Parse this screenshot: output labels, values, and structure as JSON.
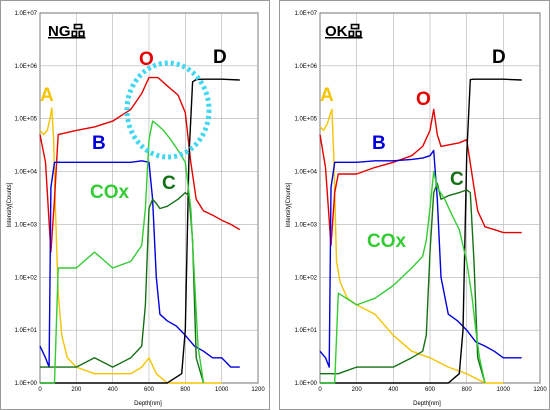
{
  "chart_data": [
    {
      "type": "line",
      "title": "NG品",
      "xlabel": "Depth[nm]",
      "ylabel": "Intensity[Counts]",
      "xlim": [
        0,
        1200
      ],
      "ylim": [
        1,
        10000000
      ],
      "y_scale": "log",
      "x_ticks": [
        "0",
        "200",
        "400",
        "600",
        "800",
        "1000",
        "1200"
      ],
      "y_ticks": [
        "1.0E+00",
        "1.0E+01",
        "1.0E+02",
        "1.0E+03",
        "1.0E+04",
        "1.0E+05",
        "1.0E+06",
        "1.0E+07"
      ],
      "grid": true,
      "series": [
        {
          "name": "A",
          "color": "#f5c400",
          "x": [
            0,
            20,
            40,
            55,
            65,
            75,
            85,
            100,
            120,
            150,
            200,
            300,
            400,
            500,
            560,
            600,
            640,
            700,
            800,
            900,
            1000
          ],
          "y": [
            60000,
            50000,
            60000,
            100000,
            160000,
            40000,
            2000,
            50,
            8,
            3,
            2,
            1.5,
            1.5,
            1.5,
            2,
            3,
            1.5,
            1,
            1,
            1,
            1
          ]
        },
        {
          "name": "O",
          "color": "#e60000",
          "x": [
            0,
            30,
            60,
            80,
            100,
            200,
            300,
            400,
            500,
            560,
            600,
            650,
            700,
            760,
            800,
            830,
            860,
            900,
            950,
            1000,
            1050,
            1100
          ],
          "y": [
            50000,
            15000,
            300,
            3000,
            50000,
            60000,
            70000,
            90000,
            150000,
            300000,
            600000,
            600000,
            420000,
            280000,
            130000,
            15000,
            3000,
            1800,
            1500,
            1200,
            1000,
            800
          ]
        },
        {
          "name": "B",
          "color": "#0000dd",
          "x": [
            0,
            30,
            50,
            60,
            80,
            100,
            200,
            300,
            400,
            500,
            560,
            600,
            620,
            640,
            660,
            700,
            750,
            800,
            850,
            900,
            950,
            1000,
            1050,
            1100
          ],
          "y": [
            5,
            3,
            2,
            5000,
            15000,
            15000,
            15000,
            15000,
            15000,
            15000,
            16000,
            15000,
            3000,
            100,
            20,
            15,
            12,
            8,
            5,
            4,
            3,
            3,
            2,
            2
          ]
        },
        {
          "name": "D",
          "color": "#000000",
          "x": [
            0,
            200,
            400,
            600,
            700,
            780,
            800,
            820,
            840,
            860,
            900,
            1000,
            1100
          ],
          "y": [
            1,
            1,
            1,
            1,
            1,
            1.5,
            10,
            20000,
            500000,
            550000,
            560000,
            560000,
            540000
          ]
        },
        {
          "name": "C",
          "color": "#157015",
          "x": [
            0,
            100,
            200,
            300,
            400,
            500,
            560,
            580,
            600,
            620,
            640,
            660,
            700,
            760,
            800,
            820,
            840,
            860,
            900
          ],
          "y": [
            2,
            2,
            2,
            3,
            2,
            3,
            5,
            30,
            2000,
            3000,
            2500,
            2000,
            2200,
            3000,
            4000,
            3500,
            500,
            3,
            1
          ]
        },
        {
          "name": "COx",
          "color": "#33cc33",
          "x": [
            0,
            50,
            80,
            100,
            200,
            300,
            400,
            500,
            560,
            580,
            600,
            620,
            640,
            680,
            720,
            760,
            800,
            830,
            850,
            870,
            900
          ],
          "y": [
            1,
            1,
            1,
            150,
            150,
            300,
            150,
            200,
            400,
            2000,
            40000,
            90000,
            80000,
            60000,
            40000,
            25000,
            15000,
            2000,
            100,
            5,
            1
          ]
        }
      ],
      "annotations": [
        {
          "text": "NG品"
        },
        {
          "text": "A",
          "color": "#f5c400"
        },
        {
          "text": "O",
          "color": "#e60000"
        },
        {
          "text": "D",
          "color": "#000000"
        },
        {
          "text": "B",
          "color": "#0000dd"
        },
        {
          "text": "COx",
          "color": "#33cc33"
        },
        {
          "text": "C",
          "color": "#157015"
        }
      ]
    },
    {
      "type": "line",
      "title": "OK品",
      "xlabel": "Depth[nm]",
      "ylabel": "Intensity[Counts]",
      "xlim": [
        0,
        1200
      ],
      "ylim": [
        1,
        10000000
      ],
      "y_scale": "log",
      "x_ticks": [
        "0",
        "200",
        "400",
        "600",
        "800",
        "1000",
        "1200"
      ],
      "y_ticks": [
        "1.0E+00",
        "1.0E+01",
        "1.0E+02",
        "1.0E+03",
        "1.0E+04",
        "1.0E+05",
        "1.0E+06",
        "1.0E+07"
      ],
      "grid": true,
      "series": [
        {
          "name": "A",
          "color": "#f5c400",
          "x": [
            0,
            20,
            40,
            55,
            65,
            75,
            90,
            110,
            150,
            200,
            300,
            400,
            500,
            600,
            700,
            800,
            900,
            1000
          ],
          "y": [
            70000,
            60000,
            80000,
            120000,
            150000,
            20000,
            200,
            80,
            40,
            30,
            20,
            8,
            4,
            3,
            2,
            1.5,
            1,
            1
          ]
        },
        {
          "name": "O",
          "color": "#e60000",
          "x": [
            0,
            30,
            60,
            80,
            100,
            200,
            300,
            400,
            500,
            560,
            600,
            620,
            640,
            660,
            700,
            760,
            800,
            840,
            860,
            900,
            950,
            1000,
            1050,
            1100
          ],
          "y": [
            50000,
            12000,
            400,
            4000,
            9000,
            9000,
            12000,
            15000,
            20000,
            30000,
            60000,
            150000,
            50000,
            30000,
            32000,
            35000,
            40000,
            5000,
            1800,
            900,
            800,
            700,
            700,
            700
          ]
        },
        {
          "name": "B",
          "color": "#0000dd",
          "x": [
            0,
            30,
            50,
            60,
            80,
            100,
            200,
            300,
            400,
            500,
            560,
            600,
            620,
            640,
            660,
            700,
            750,
            800,
            850,
            900,
            950,
            1000,
            1050,
            1100
          ],
          "y": [
            4,
            3,
            2,
            5000,
            15000,
            15000,
            15000,
            16000,
            16000,
            17000,
            18000,
            20000,
            25000,
            3000,
            100,
            20,
            15,
            10,
            6,
            5,
            4,
            3,
            3,
            3
          ]
        },
        {
          "name": "D",
          "color": "#000000",
          "x": [
            0,
            200,
            400,
            600,
            700,
            760,
            780,
            800,
            820,
            840,
            900,
            1000,
            1100
          ],
          "y": [
            1,
            1,
            1,
            1,
            1,
            1.5,
            10,
            20000,
            550000,
            560000,
            560000,
            560000,
            540000
          ]
        },
        {
          "name": "C",
          "color": "#157015",
          "x": [
            0,
            100,
            200,
            300,
            400,
            500,
            560,
            580,
            600,
            620,
            640,
            660,
            700,
            760,
            800,
            820,
            840,
            860,
            900
          ],
          "y": [
            1.5,
            1.5,
            2,
            2,
            2,
            3,
            4,
            8,
            300,
            4000,
            6000,
            3000,
            3500,
            4000,
            4500,
            4000,
            200,
            3,
            1
          ]
        },
        {
          "name": "COx",
          "color": "#33cc33",
          "x": [
            0,
            50,
            80,
            100,
            200,
            300,
            400,
            500,
            560,
            580,
            600,
            620,
            640,
            680,
            720,
            760,
            800,
            830,
            850,
            870,
            900
          ],
          "y": [
            1,
            1,
            1,
            50,
            30,
            40,
            70,
            150,
            250,
            500,
            2000,
            10000,
            5000,
            3000,
            1500,
            800,
            200,
            40,
            10,
            3,
            1
          ]
        }
      ],
      "annotations": [
        {
          "text": "OK品"
        },
        {
          "text": "A",
          "color": "#f5c400"
        },
        {
          "text": "O",
          "color": "#e60000"
        },
        {
          "text": "D",
          "color": "#000000"
        },
        {
          "text": "B",
          "color": "#0000dd"
        },
        {
          "text": "C",
          "color": "#157015"
        },
        {
          "text": "COx",
          "color": "#33cc33"
        }
      ]
    }
  ]
}
